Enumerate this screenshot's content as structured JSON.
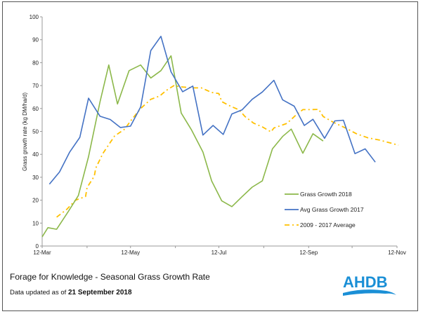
{
  "chart_data": {
    "type": "line",
    "title": "Forage for Knowledge -  Seasonal Grass Growth Rate",
    "subtitle_prefix": "Data updated as of",
    "updated_date": "21 September 2018",
    "xlabel": "",
    "ylabel": "Grass growth rate (kg DM/ha/d)",
    "x_unit": "days since 12-Mar",
    "xlim": [
      0,
      245
    ],
    "ylim": [
      0,
      100
    ],
    "y_ticks": [
      "0",
      "10",
      "20",
      "30",
      "40",
      "50",
      "60",
      "70",
      "80",
      "90",
      "100"
    ],
    "x_ticks": [
      {
        "day": 0,
        "label": "12-Mar"
      },
      {
        "day": 61,
        "label": "12-May"
      },
      {
        "day": 122,
        "label": "12-Jul"
      },
      {
        "day": 184,
        "label": "12-Sep"
      },
      {
        "day": 245,
        "label": "12-Nov"
      }
    ],
    "x_minor_ticks": [
      31,
      92,
      153,
      214
    ],
    "grid": false,
    "legend_position": "lower-right",
    "series": [
      {
        "name": "Grass Growth 2018",
        "color": "#8cb84a",
        "style": "solid",
        "x": [
          0,
          4,
          10,
          18,
          25,
          32,
          40,
          46,
          52,
          60,
          68,
          75,
          82,
          89,
          96,
          103,
          111,
          117,
          124,
          131,
          138,
          145,
          152,
          159,
          166,
          172,
          180,
          187,
          194
        ],
        "y": [
          4,
          8,
          7.3,
          15,
          22,
          39,
          63,
          79,
          62,
          76.5,
          79,
          73.3,
          76.5,
          83,
          58,
          50.8,
          41,
          28.4,
          19.7,
          17.2,
          21.5,
          25.7,
          28.4,
          42.4,
          47.8,
          51,
          40.5,
          49,
          45.8
        ]
      },
      {
        "name": "Avg Grass Growth 2017",
        "color": "#4472c4",
        "style": "solid",
        "x": [
          5,
          12,
          19,
          26,
          32,
          40,
          47,
          54,
          61,
          68,
          75,
          82,
          89,
          97,
          104,
          111,
          118,
          125,
          131,
          138,
          145,
          152,
          160,
          166,
          174,
          181,
          187,
          195,
          202,
          208,
          216,
          223,
          230
        ],
        "y": [
          27,
          32.3,
          41,
          47.4,
          64.5,
          56.6,
          55.2,
          51.7,
          52.3,
          60.7,
          85.3,
          91.5,
          76,
          67.3,
          69.8,
          48.4,
          52.6,
          48.7,
          57.6,
          59.4,
          64,
          67.2,
          72.3,
          63.8,
          61,
          52.6,
          55.3,
          47,
          54.6,
          54.9,
          40.3,
          42.4,
          36.6
        ]
      },
      {
        "name": "2009 - 2017 Average",
        "color": "#ffc000",
        "style": "dashdot",
        "x": [
          10,
          17,
          23,
          30,
          31,
          36,
          37,
          42,
          50,
          57,
          61,
          68,
          75,
          81,
          86,
          91,
          97,
          104,
          110,
          117,
          122,
          124,
          130,
          136,
          140,
          146,
          152,
          158,
          160,
          169,
          175,
          180,
          185,
          191,
          194,
          201,
          210,
          217,
          225,
          233,
          246
        ],
        "y": [
          12.6,
          16,
          20,
          21.6,
          25.5,
          30.5,
          34,
          40.5,
          48,
          51,
          54.5,
          60,
          64,
          65.4,
          68,
          70,
          69.4,
          69,
          69,
          67,
          66.5,
          63,
          61,
          59.4,
          56.5,
          53.6,
          52,
          49.8,
          51.5,
          53.5,
          57,
          59.5,
          59.5,
          59.6,
          56.5,
          54,
          51.3,
          49,
          47.2,
          46.2,
          44
        ]
      }
    ]
  },
  "logo": {
    "text": "AHDB",
    "color": "#1a8fd6"
  }
}
